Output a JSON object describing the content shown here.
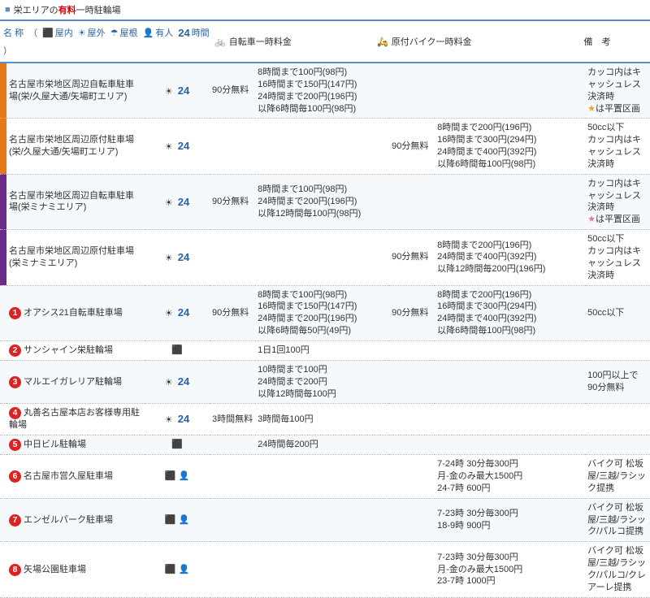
{
  "title": {
    "bullet": "■",
    "prefix": "栄エリアの",
    "accent": "有料",
    "suffix": "一時駐輪場"
  },
  "header": {
    "name_label": "名 称",
    "legend": [
      {
        "icon": "indoor",
        "label": "屋内"
      },
      {
        "icon": "sun",
        "label": "屋外"
      },
      {
        "icon": "roof",
        "label": "屋根"
      },
      {
        "icon": "person",
        "label": "有人"
      },
      {
        "icon": "24",
        "label": "時間"
      }
    ],
    "bike_label": "自転車一時料金",
    "moto_label": "原付バイク一時料金",
    "note_label": "備　考"
  },
  "rows": [
    {
      "strip": "#e67817",
      "num": "",
      "name": "名古屋市栄地区周辺自転車駐車場(栄/久屋大通/矢場町エリア)",
      "icons": {
        "sun": true,
        "t24": true
      },
      "free1": "90分無料",
      "bike": "8時間まで100円(98円)\n16時間まで150円(147円)\n24時間まで200円(196円)\n以降6時間毎100円(98円)",
      "free2": "",
      "moto": "",
      "note": "カッコ内はキャッシュレス決済時\n★は平置区画",
      "note_star": "gold",
      "zebra": true
    },
    {
      "strip": "#e67817",
      "num": "",
      "name": "名古屋市栄地区周辺原付駐車場(栄/久屋大通/矢場町エリア)",
      "icons": {
        "sun": true,
        "t24": true
      },
      "free1": "",
      "bike": "",
      "free2": "90分無料",
      "moto": "8時間まで200円(196円)\n16時間まで300円(294円)\n24時間まで400円(392円)\n以降6時間毎100円(98円)",
      "note": "50cc以下\nカッコ内はキャッシュレス決済時",
      "zebra": false
    },
    {
      "strip": "#6a2a8a",
      "num": "",
      "name": "名古屋市栄地区周辺自転車駐車場(栄ミナミエリア)",
      "icons": {
        "sun": true,
        "t24": true
      },
      "free1": "90分無料",
      "bike": "8時間まで100円(98円)\n24時間まで200円(196円)\n以降12時間毎100円(98円)",
      "free2": "",
      "moto": "",
      "note": "カッコ内はキャッシュレス決済時\n★は平置区画",
      "note_star": "pink",
      "zebra": true
    },
    {
      "strip": "#6a2a8a",
      "num": "",
      "name": "名古屋市栄地区周辺原付駐車場(栄ミナミエリア)",
      "icons": {
        "sun": true,
        "t24": true
      },
      "free1": "",
      "bike": "",
      "free2": "90分無料",
      "moto": "8時間まで200円(196円)\n24時間まで400円(392円)\n以降12時間毎200円(196円)",
      "note": "50cc以下\nカッコ内はキャッシュレス決済時",
      "zebra": false
    },
    {
      "strip": "",
      "num": "1",
      "name": "オアシス21自転車駐車場",
      "icons": {
        "sun": true,
        "t24": true
      },
      "free1": "90分無料",
      "bike": "8時間まで100円(98円)\n16時間まで150円(147円)\n24時間まで200円(196円)\n以降6時間毎50円(49円)",
      "free2": "90分無料",
      "moto": "8時間まで200円(196円)\n16時間まで300円(294円)\n24時間まで400円(392円)\n以降6時間毎100円(98円)",
      "note": "50cc以下",
      "zebra": true
    },
    {
      "strip": "",
      "num": "2",
      "name": "サンシャイン栄駐輪場",
      "icons": {
        "indoor": true
      },
      "free1": "",
      "bike": "1日1回100円",
      "free2": "",
      "moto": "",
      "note": "",
      "zebra": false
    },
    {
      "strip": "",
      "num": "3",
      "name": "マルエイガレリア駐輪場",
      "icons": {
        "sun": true,
        "t24": true
      },
      "free1": "",
      "bike": "10時間まで100円\n24時間まで200円\n以降12時間毎100円",
      "free2": "",
      "moto": "",
      "note": "100円以上で\n90分無料",
      "zebra": true
    },
    {
      "strip": "",
      "num": "4",
      "name": "丸善名古屋本店お客様専用駐輪場",
      "icons": {
        "sun": true,
        "t24": true
      },
      "free1": "3時間無料",
      "bike": "3時間毎100円",
      "free2": "",
      "moto": "",
      "note": "",
      "zebra": false
    },
    {
      "strip": "",
      "num": "5",
      "name": "中日ビル駐輪場",
      "icons": {
        "indoor": true
      },
      "free1": "",
      "bike": "24時間毎200円",
      "free2": "",
      "moto": "",
      "note": "",
      "zebra": true
    },
    {
      "strip": "",
      "num": "6",
      "name": "名古屋市営久屋駐車場",
      "icons": {
        "indoor": true,
        "person": true
      },
      "free1": "",
      "bike": "",
      "free2": "",
      "moto": "7-24時 30分毎300円\n月-金のみ最大1500円\n24-7時 600円",
      "note": "バイク可 松坂屋/三越/ラシック提携",
      "zebra": false
    },
    {
      "strip": "",
      "num": "7",
      "name": "エンゼルパーク駐車場",
      "icons": {
        "indoor": true,
        "person": true
      },
      "free1": "",
      "bike": "",
      "free2": "",
      "moto": "7-23時 30分毎300円\n18-9時 900円",
      "note": "バイク可 松坂屋/三越/ラシック/パルコ提携",
      "zebra": true
    },
    {
      "strip": "",
      "num": "8",
      "name": "矢場公園駐車場",
      "icons": {
        "indoor": true,
        "person": true
      },
      "free1": "",
      "bike": "",
      "free2": "",
      "moto": "7-23時 30分毎300円\n月-金のみ最大1500円\n23-7時 1000円",
      "note": "バイク可 松坂屋/三越/ラシック/パルコ/クレアーレ提携",
      "zebra": false
    }
  ],
  "colors": {
    "header_border": "#5a8fc0",
    "blue": "#2862a8",
    "red": "#d22"
  }
}
